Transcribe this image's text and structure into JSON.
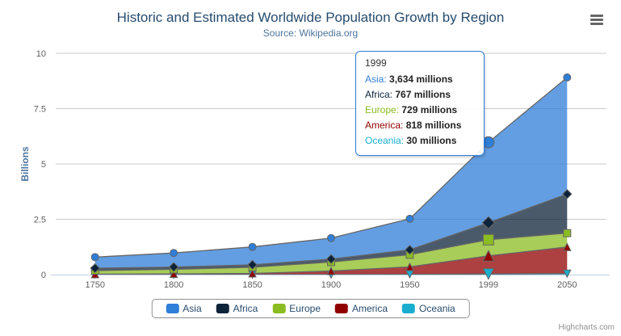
{
  "chart_data": {
    "type": "area",
    "stacking": "normal",
    "title": "Historic and Estimated Worldwide Population Growth by Region",
    "subtitle": "Source: Wikipedia.org",
    "categories": [
      "1750",
      "1800",
      "1850",
      "1900",
      "1950",
      "1999",
      "2050"
    ],
    "xlabel": "",
    "ylabel": "Billions",
    "ylim": [
      0,
      10
    ],
    "yticks": [
      0,
      2.5,
      5,
      7.5,
      10
    ],
    "units": "millions",
    "grid": true,
    "legend_position": "bottom",
    "hover_index": 5,
    "series": [
      {
        "name": "Asia",
        "color": "#2f7ed8",
        "marker": "circle",
        "values": [
          502,
          635,
          809,
          947,
          1402,
          3634,
          5268
        ]
      },
      {
        "name": "Africa",
        "color": "#0d233a",
        "marker": "diamond",
        "values": [
          106,
          107,
          111,
          133,
          221,
          767,
          1766
        ]
      },
      {
        "name": "Europe",
        "color": "#8bbc21",
        "marker": "square",
        "values": [
          163,
          203,
          276,
          408,
          547,
          729,
          628
        ]
      },
      {
        "name": "America",
        "color": "#910000",
        "marker": "triangle",
        "values": [
          18,
          31,
          54,
          156,
          339,
          818,
          1201
        ]
      },
      {
        "name": "Oceania",
        "color": "#1aadce",
        "marker": "triangle-down",
        "values": [
          2,
          2,
          2,
          6,
          13,
          30,
          46
        ]
      }
    ]
  },
  "tooltip": {
    "header": "1999",
    "rows": [
      {
        "name": "Asia",
        "value": "3,634 millions"
      },
      {
        "name": "Africa",
        "value": "767 millions"
      },
      {
        "name": "Europe",
        "value": "729 millions"
      },
      {
        "name": "America",
        "value": "818 millions"
      },
      {
        "name": "Oceania",
        "value": "30 millions"
      }
    ]
  },
  "legend": {
    "items": [
      "Asia",
      "Africa",
      "Europe",
      "America",
      "Oceania"
    ]
  },
  "credits": "Highcharts.com",
  "icons": {
    "export_menu": "hamburger-menu-icon"
  },
  "style_colors": {
    "title": "#274b6d",
    "subtitle": "#4d759e",
    "axis_label": "#606060",
    "axis_title": "#4d759e",
    "grid_line": "#c9c9c9",
    "axis_line": "#c0d0e0",
    "series_outline": "#666666",
    "fill_opacity": "0.75",
    "tooltip_border": "#2f7ed8",
    "legend_border": "#909090",
    "legend_text": "#274b6d",
    "credits_text": "#909090"
  }
}
